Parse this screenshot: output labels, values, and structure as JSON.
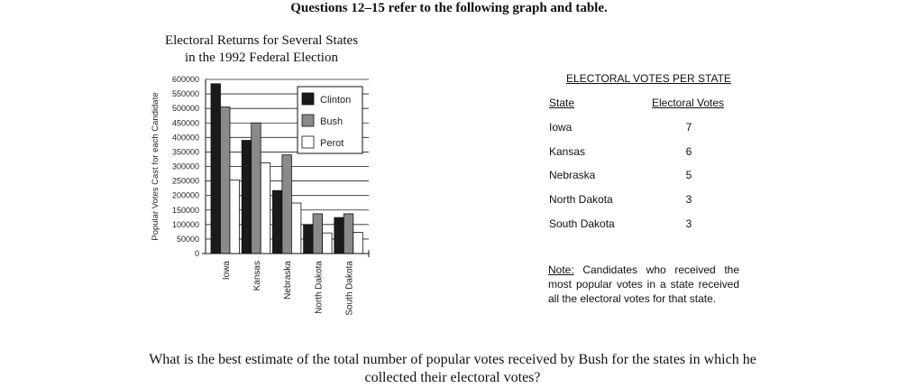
{
  "header": "Questions 12–15 refer to the following graph and table.",
  "question": "What is the best estimate of the total number of popular votes received by Bush for the states in which he collected their electoral votes?",
  "table": {
    "title": "ELECTORAL VOTES PER STATE",
    "col_state": "State",
    "col_votes": "Electoral Votes",
    "rows": [
      {
        "state": "Iowa",
        "votes": "7"
      },
      {
        "state": "Kansas",
        "votes": "6"
      },
      {
        "state": "Nebraska",
        "votes": "5"
      },
      {
        "state": "North Dakota",
        "votes": "3"
      },
      {
        "state": "South Dakota",
        "votes": "3"
      }
    ]
  },
  "note": {
    "label": "Note:",
    "text": "Candidates who received the most popular votes in a state received all the electoral votes for that state."
  },
  "chart_data": {
    "type": "bar",
    "title": "Electoral Returns for Several States in the 1992 Federal Election",
    "title_lines": [
      "Electoral Returns for Several States",
      "in the 1992 Federal Election"
    ],
    "xlabel": "",
    "ylabel": "Popular Votes Cast for each Candidate",
    "categories": [
      "Iowa",
      "Kansas",
      "Nebraska",
      "North Dakota",
      "South Dakota"
    ],
    "series": [
      {
        "name": "Clinton",
        "values": [
          585000,
          390000,
          217000,
          99000,
          124000
        ],
        "color": "#1a1a1a"
      },
      {
        "name": "Bush",
        "values": [
          505000,
          450000,
          340000,
          137000,
          137000
        ],
        "color": "#8a8a8a"
      },
      {
        "name": "Perot",
        "values": [
          253000,
          312000,
          174000,
          71000,
          73000
        ],
        "color": "#ffffff"
      }
    ],
    "ylim": [
      0,
      600000
    ],
    "yticks": [
      0,
      50000,
      100000,
      150000,
      200000,
      250000,
      300000,
      350000,
      400000,
      450000,
      500000,
      550000,
      600000
    ],
    "ytick_labels": [
      "0",
      "50000",
      "100000",
      "150000",
      "200000",
      "250000",
      "300000",
      "350000",
      "400000",
      "450000",
      "500000",
      "550000",
      "600000"
    ],
    "grid": true,
    "legend_position": "top-right"
  }
}
